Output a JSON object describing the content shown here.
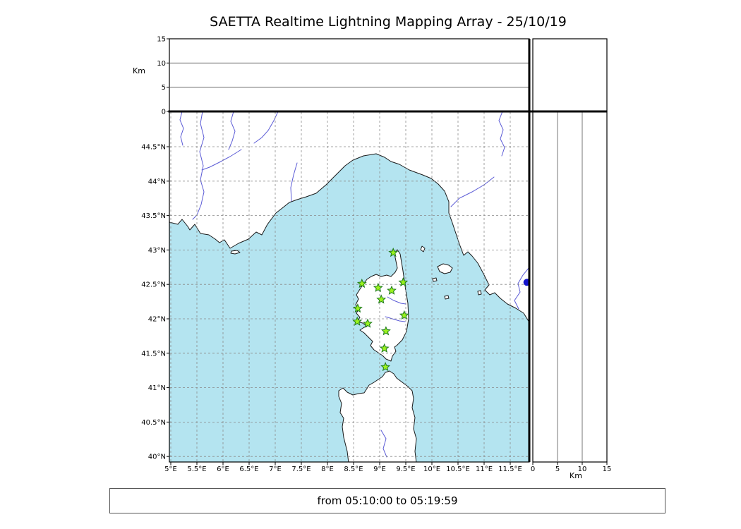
{
  "title": "SAETTA Realtime Lightning Mapping Array - 25/10/19",
  "footer": {
    "time_range": "from 05:10:00 to 05:19:59"
  },
  "colors": {
    "sea": "#b4e4f0",
    "land": "#ffffff",
    "coast": "#1a1a1a",
    "river": "#5b5bd6",
    "grid": "#8a8a8a",
    "panel_grid": "#555555",
    "station_fill": "#9bf21e",
    "station_stroke": "#1e7a1e",
    "source_dot": "#1414cc"
  },
  "chart_data": {
    "type": "scatter",
    "title": "SAETTA Realtime Lightning Mapping Array - 25/10/19",
    "time_window": "from 05:10:00 to 05:19:59",
    "map_panel": {
      "lon_ticks": [
        5,
        5.5,
        6,
        6.5,
        7,
        7.5,
        8,
        8.5,
        9,
        9.5,
        10,
        10.5,
        11,
        11.5
      ],
      "lon_tick_labels": [
        "5°E",
        "5.5°E",
        "6°E",
        "6.5°E",
        "7°E",
        "7.5°E",
        "8°E",
        "8.5°E",
        "9°E",
        "9.5°E",
        "10°E",
        "10.5°E",
        "11°E",
        "11.5°E"
      ],
      "lat_ticks": [
        40,
        40.5,
        41,
        41.5,
        42,
        42.5,
        43,
        43.5,
        44,
        44.5
      ],
      "lat_tick_labels": [
        "40°N",
        "40.5°N",
        "41°N",
        "41.5°N",
        "42°N",
        "42.5°N",
        "43°N",
        "43.5°N",
        "44°N",
        "44.5°N"
      ],
      "lon_range": [
        4.97,
        11.86
      ],
      "lat_range": [
        39.91,
        45.01
      ],
      "grid": "dashed"
    },
    "altitude_panels": {
      "axis_label": "Km",
      "range_km": [
        0,
        15
      ],
      "km_ticks": [
        0,
        5,
        10,
        15
      ],
      "km_tick_labels": [
        "0",
        "5",
        "10",
        "15"
      ],
      "km_gridlines": [
        5,
        10
      ]
    },
    "stations_marker": "green-star",
    "stations": [
      {
        "lon": 9.26,
        "lat": 42.96
      },
      {
        "lon": 8.66,
        "lat": 42.51
      },
      {
        "lon": 8.97,
        "lat": 42.45
      },
      {
        "lon": 9.23,
        "lat": 42.41
      },
      {
        "lon": 9.45,
        "lat": 42.53
      },
      {
        "lon": 9.03,
        "lat": 42.28
      },
      {
        "lon": 8.58,
        "lat": 42.15
      },
      {
        "lon": 9.47,
        "lat": 42.05
      },
      {
        "lon": 8.57,
        "lat": 41.96
      },
      {
        "lon": 8.77,
        "lat": 41.93
      },
      {
        "lon": 9.12,
        "lat": 41.82
      },
      {
        "lon": 9.09,
        "lat": 41.57
      },
      {
        "lon": 9.11,
        "lat": 41.3
      }
    ],
    "source_point": {
      "lon": 11.82,
      "lat": 42.53
    }
  }
}
